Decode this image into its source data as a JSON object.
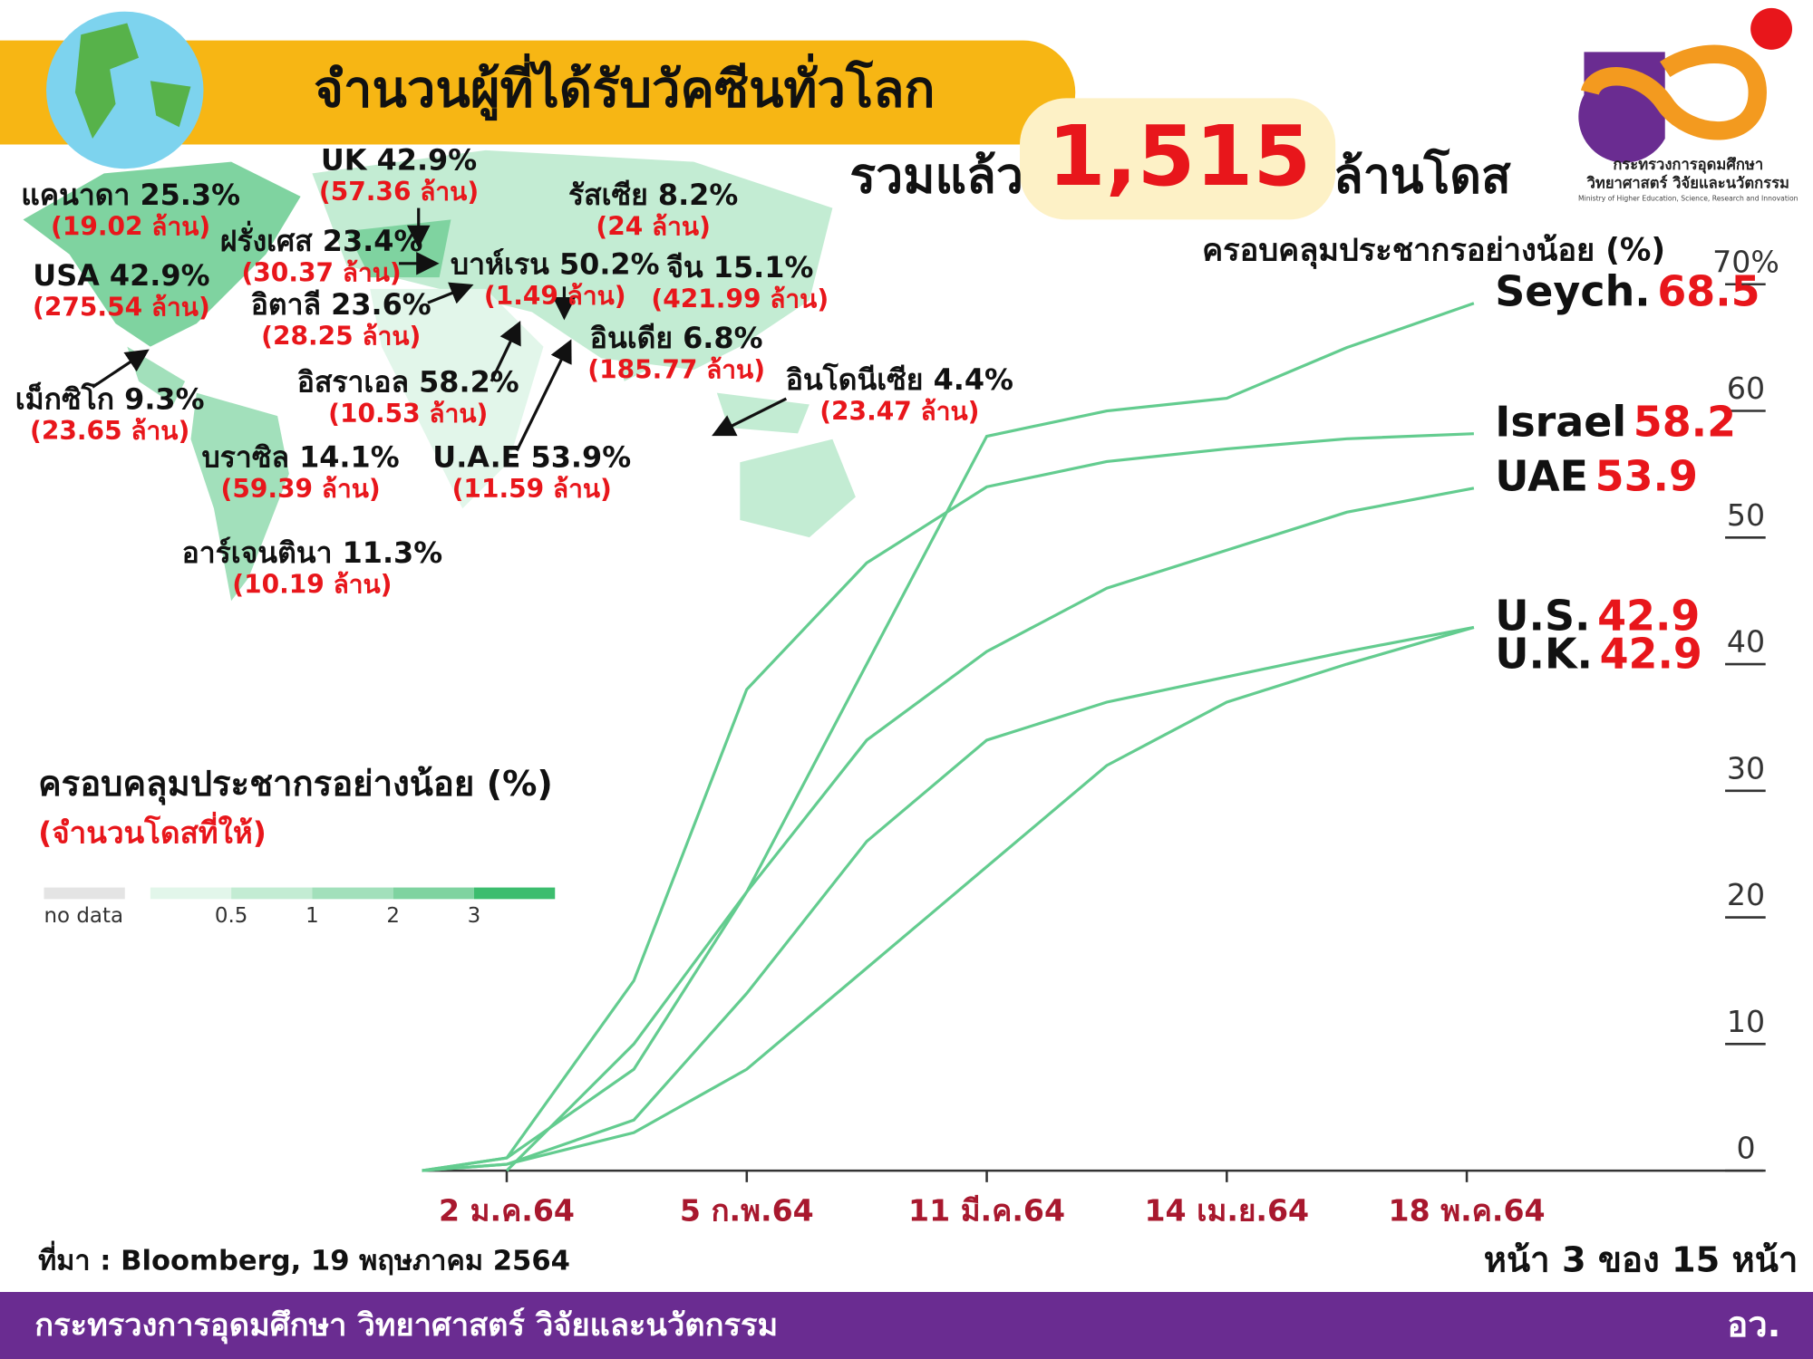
{
  "header": {
    "title": "จำนวนผู้ที่ได้รับวัคซีนทั่วโลก",
    "total_prefix": "รวมแล้ว",
    "total": "1,515",
    "total_suffix": "ล้านโดส",
    "logo_line1": "กระทรวงการอุดมศึกษา",
    "logo_line2": "วิทยาศาสตร์ วิจัยและนวัตกรรม",
    "logo_line3": "Ministry of Higher Education, Science, Research and Innovation"
  },
  "map": {
    "labels": [
      {
        "name": "แคนาดา 25.3%",
        "amount": "(19.02 ล้าน)"
      },
      {
        "name": "UK 42.9%",
        "amount": "(57.36 ล้าน)"
      },
      {
        "name": "รัสเซีย 8.2%",
        "amount": "(24 ล้าน)"
      },
      {
        "name": "ฝรั่งเศส 23.4%",
        "amount": "(30.37 ล้าน)"
      },
      {
        "name": "USA 42.9%",
        "amount": "(275.54 ล้าน)"
      },
      {
        "name": "บาห์เรน 50.2%",
        "amount": "(1.49 ล้าน)"
      },
      {
        "name": "จีน 15.1%",
        "amount": "(421.99 ล้าน)"
      },
      {
        "name": "อิตาลี 23.6%",
        "amount": "(28.25 ล้าน)"
      },
      {
        "name": "อินเดีย 6.8%",
        "amount": "(185.77 ล้าน)"
      },
      {
        "name": "อิสราเอล 58.2%",
        "amount": "(10.53 ล้าน)"
      },
      {
        "name": "อินโดนีเซีย 4.4%",
        "amount": "(23.47 ล้าน)"
      },
      {
        "name": "เม็กซิโก 9.3%",
        "amount": "(23.65 ล้าน)"
      },
      {
        "name": "บราซิล 14.1%",
        "amount": "(59.39 ล้าน)"
      },
      {
        "name": "U.A.E 53.9%",
        "amount": "(11.59 ล้าน)"
      },
      {
        "name": "อาร์เจนตินา 11.3%",
        "amount": "(10.19 ล้าน)"
      }
    ],
    "legend": {
      "title": "ครอบคลุมประชากรอย่างน้อย (%)",
      "subtitle": "(จำนวนโดสที่ให้)",
      "no_data": "no data",
      "no_data_color": "#e4e4e4",
      "colors": [
        "#e2f6ea",
        "#c3ecd3",
        "#a2e0bb",
        "#7fd3a0",
        "#3cbd6e"
      ],
      "ticks": [
        0.5,
        1,
        2,
        3
      ]
    }
  },
  "chart_data": {
    "type": "line",
    "ylabel": "ครอบคลุมประชากรอย่างน้อย (%)",
    "x": [
      -10,
      2,
      20,
      36,
      53,
      70,
      87,
      104,
      121,
      139
    ],
    "xlim": [
      -10,
      180
    ],
    "xticks": [
      {
        "value": 2,
        "label": "2 ม.ค.64"
      },
      {
        "value": 36,
        "label": "5 ก.พ.64"
      },
      {
        "value": 70,
        "label": "11 มี.ค.64"
      },
      {
        "value": 104,
        "label": "14 เม.ย.64"
      },
      {
        "value": 138,
        "label": "18 พ.ค.64"
      }
    ],
    "ylim": [
      0,
      70
    ],
    "yticks": [
      0,
      10,
      20,
      30,
      40,
      50,
      60,
      {
        "value": 70,
        "label": "70%"
      }
    ],
    "series": [
      {
        "name": "Seych.",
        "color": "#63cc8f",
        "values": [
          null,
          0,
          10,
          22,
          40,
          58,
          60,
          61,
          65,
          68.5
        ]
      },
      {
        "name": "Israel",
        "color": "#63cc8f",
        "values": [
          0,
          1,
          15,
          38,
          48,
          54,
          56,
          57,
          57.8,
          58.2
        ]
      },
      {
        "name": "UAE",
        "color": "#63cc8f",
        "values": [
          0,
          1,
          8,
          22,
          34,
          41,
          46,
          49,
          52,
          53.9
        ]
      },
      {
        "name": "U.S.",
        "color": "#63cc8f",
        "values": [
          0,
          0.5,
          3,
          8,
          16,
          24,
          32,
          37,
          40,
          42.9
        ]
      },
      {
        "name": "U.K.",
        "color": "#63cc8f",
        "values": [
          0,
          0.5,
          4,
          14,
          26,
          34,
          37,
          39,
          41,
          42.9
        ]
      }
    ]
  },
  "footer": {
    "source": "ที่มา : Bloomberg, 19 พฤษภาคม 2564",
    "page": "หน้า 3 ของ 15 หน้า",
    "ministry": "กระทรวงการอุดมศึกษา วิทยาศาสตร์ วิจัยและนวัตกรรม",
    "abbr": "อว."
  }
}
